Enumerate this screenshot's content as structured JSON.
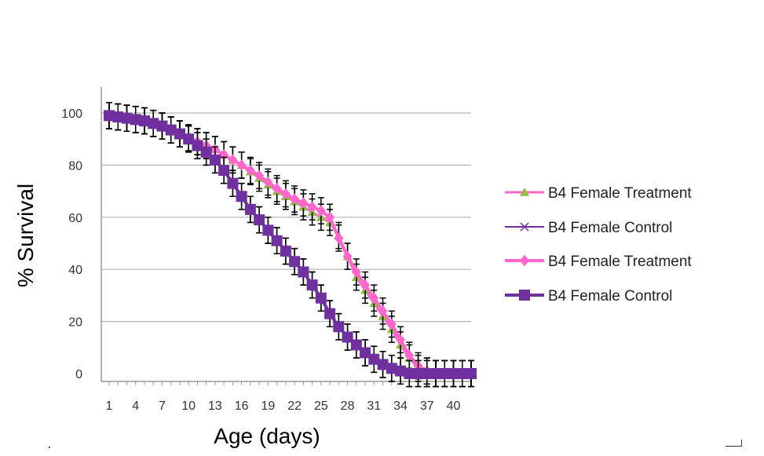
{
  "chart_data": {
    "type": "line",
    "title": "",
    "xlabel": "Age (days)",
    "ylabel": "% Survival",
    "x": [
      1,
      2,
      3,
      4,
      5,
      6,
      7,
      8,
      9,
      10,
      11,
      12,
      13,
      14,
      15,
      16,
      17,
      18,
      19,
      20,
      21,
      22,
      23,
      24,
      25,
      26,
      27,
      28,
      29,
      30,
      31,
      32,
      33,
      34,
      35,
      36,
      37,
      38,
      39,
      40,
      41,
      42
    ],
    "xticks": [
      1,
      4,
      7,
      10,
      13,
      16,
      19,
      22,
      25,
      28,
      31,
      34,
      37,
      40
    ],
    "yticks": [
      0,
      20,
      40,
      60,
      80,
      100
    ],
    "ylim": [
      0,
      110
    ],
    "grid": "horizontal",
    "legend_position": "right",
    "error_bar": 5,
    "series": [
      {
        "name": "B4 Female Treatment",
        "color": "#8fbc3f",
        "line_color": "#ff66cc",
        "marker": "triangle",
        "values": [
          99,
          98.5,
          98,
          97.5,
          97,
          96,
          95,
          93.5,
          92,
          90.5,
          89,
          87.5,
          86,
          84,
          82,
          80,
          77.5,
          75,
          72.5,
          70,
          68,
          66,
          64,
          62,
          60,
          58,
          53,
          45,
          37,
          32,
          27,
          22,
          17,
          11,
          6,
          2,
          1,
          0,
          0,
          0,
          0,
          0
        ]
      },
      {
        "name": "B4 Female Control",
        "color": "#7030a0",
        "marker": "x",
        "values": [
          99,
          98.5,
          98,
          97.5,
          97,
          96,
          95,
          93.5,
          92,
          90,
          87.5,
          85,
          82,
          78,
          73,
          68,
          63,
          59,
          55,
          51,
          47,
          43,
          39,
          34,
          29,
          23,
          18,
          14,
          11,
          8,
          5.5,
          3.5,
          2,
          1,
          0,
          0,
          0,
          0,
          0,
          0,
          0,
          0
        ]
      },
      {
        "name": "B4 Female Treatment",
        "color": "#ff66cc",
        "marker": "diamond",
        "values": [
          99,
          98.5,
          98,
          97.5,
          97,
          96,
          95,
          93.5,
          92,
          90.5,
          89,
          87.5,
          86,
          84,
          82,
          80,
          78,
          76,
          73.5,
          71,
          69,
          67,
          65.5,
          64,
          62.5,
          60,
          52,
          45,
          39,
          34,
          29,
          24,
          19,
          13,
          7,
          3,
          1,
          0,
          0,
          0,
          0,
          0
        ]
      },
      {
        "name": "B4 Female Control",
        "color": "#7030a0",
        "marker": "square",
        "values": [
          99,
          98.5,
          98,
          97.5,
          97,
          96,
          95,
          93.5,
          92,
          90,
          87.5,
          85,
          82,
          78,
          73,
          68,
          63,
          59,
          55,
          51,
          47,
          43,
          39,
          34,
          29,
          23,
          18,
          14,
          11,
          8,
          5.5,
          3.5,
          2,
          1,
          0,
          0,
          0,
          0,
          0,
          0,
          0,
          0
        ]
      }
    ]
  }
}
